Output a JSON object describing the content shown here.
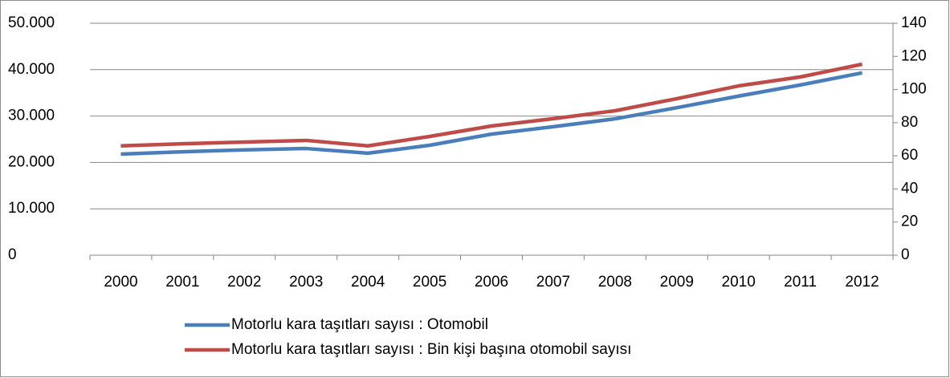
{
  "chart_data": {
    "type": "line",
    "categories": [
      "2000",
      "2001",
      "2002",
      "2003",
      "2004",
      "2005",
      "2006",
      "2007",
      "2008",
      "2009",
      "2010",
      "2011",
      "2012"
    ],
    "series": [
      {
        "name": "Motorlu kara taşıtları sayısı : Otomobil",
        "color": "#4a7ebb",
        "axis": "y",
        "values": [
          21800,
          22300,
          22700,
          23000,
          22000,
          23700,
          26100,
          27700,
          29400,
          31800,
          34300,
          36700,
          39300
        ]
      },
      {
        "name": "Motorlu kara taşıtları sayısı : Bin kişi başına otomobil sayısı",
        "color": "#be4b48",
        "axis": "y2",
        "values": [
          66,
          67.3,
          68.3,
          69.3,
          66,
          71.7,
          78,
          82.4,
          87.2,
          94.5,
          102.2,
          107.6,
          115.3
        ]
      }
    ],
    "ylim": [
      0,
      50000
    ],
    "yticks": [
      0,
      {
        "value": 10000,
        "label": "10.000"
      },
      {
        "value": 20000,
        "label": "20.000"
      },
      {
        "value": 30000,
        "label": "30.000"
      },
      {
        "value": 40000,
        "label": "40.000"
      },
      {
        "value": 50000,
        "label": "50.000"
      }
    ],
    "y2lim": [
      0,
      140
    ],
    "y2ticks": [
      0,
      20,
      40,
      60,
      80,
      100,
      120,
      140
    ],
    "grid": true,
    "legend": "bottom"
  }
}
